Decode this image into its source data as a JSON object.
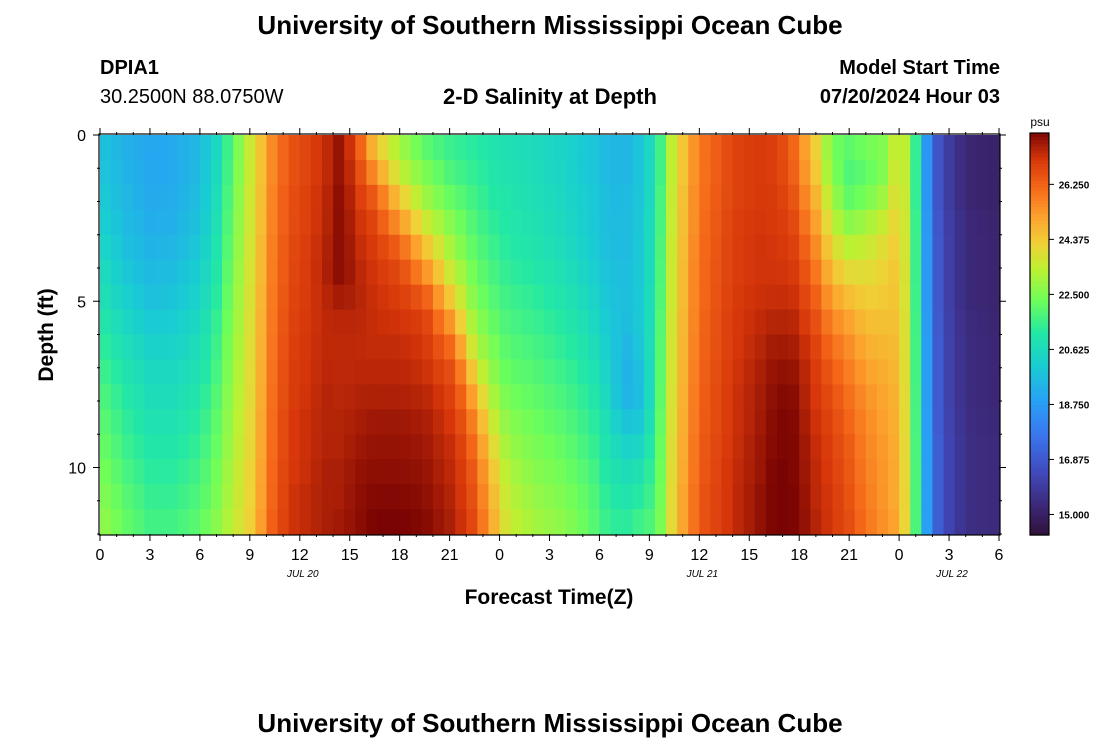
{
  "header": {
    "title": "University of Southern Mississippi Ocean Cube",
    "station_id": "DPIA1",
    "coordinates": "30.2500N  88.0750W",
    "plot_title": "2-D Salinity at Depth",
    "model_start_label": "Model Start Time",
    "model_start_value": "07/20/2024 Hour 03"
  },
  "footer": {
    "title": "University of Southern Mississippi Ocean Cube"
  },
  "chart_data": {
    "type": "heatmap",
    "title": "2-D Salinity at Depth",
    "xlabel": "Forecast Time(Z)",
    "ylabel": "Depth (ft)",
    "x_ticks": [
      "0",
      "3",
      "6",
      "9",
      "12",
      "15",
      "18",
      "21",
      "0",
      "3",
      "6",
      "9",
      "12",
      "15",
      "18",
      "21",
      "0",
      "3",
      "6"
    ],
    "x_range_hours": [
      0,
      54
    ],
    "date_labels": [
      {
        "label": "JUL 20",
        "hour": 12
      },
      {
        "label": "JUL 21",
        "hour": 36
      },
      {
        "label": "JUL 22",
        "hour": 51
      }
    ],
    "y_ticks": [
      0,
      5,
      10
    ],
    "y_range_ft": [
      0,
      12
    ],
    "colorbar": {
      "unit": "psu",
      "min": 14.3,
      "max": 28.0,
      "tick_labels": [
        "26.250",
        "24.375",
        "22.500",
        "20.625",
        "18.750",
        "16.875",
        "15.000"
      ],
      "tick_values": [
        26.25,
        24.375,
        22.5,
        20.625,
        18.75,
        16.875,
        15.0
      ]
    },
    "depth_levels_ft": [
      0.4,
      1.2,
      2.0,
      2.8,
      3.6,
      4.4,
      5.2,
      6.0,
      6.8,
      7.6,
      8.4,
      9.2,
      10.0,
      10.8,
      11.6
    ],
    "profile_hours": [
      0,
      1.5,
      3,
      4.5,
      6,
      7,
      8,
      9,
      9.7,
      10.5,
      11.5,
      12.5,
      13.5,
      14.5,
      15.5,
      16.5,
      18,
      19.5,
      21,
      22,
      22.5,
      23.5,
      24.5,
      26,
      28,
      29.5,
      30.5,
      31.5,
      32.5,
      33.5,
      34,
      35,
      36,
      38,
      39.5,
      40.5,
      41.5,
      42,
      43,
      44,
      45,
      46,
      47,
      48,
      48.7,
      49.2,
      49.8,
      50.5,
      52,
      54
    ],
    "salinity_psu": [
      [
        19.8,
        19.9,
        20.1,
        20.3,
        20.5,
        20.8,
        21.0,
        21.3,
        21.5,
        21.8,
        22.0,
        22.2,
        22.4,
        22.6,
        22.8
      ],
      [
        19.3,
        19.4,
        19.5,
        19.6,
        19.8,
        20.0,
        20.3,
        20.6,
        20.9,
        21.1,
        21.3,
        21.5,
        21.7,
        21.9,
        22.1
      ],
      [
        19.0,
        19.0,
        19.1,
        19.2,
        19.4,
        19.6,
        19.8,
        20.1,
        20.4,
        20.6,
        20.8,
        21.0,
        21.2,
        21.4,
        21.6
      ],
      [
        19.1,
        19.1,
        19.2,
        19.3,
        19.5,
        19.7,
        19.9,
        20.2,
        20.4,
        20.6,
        20.8,
        21.0,
        21.2,
        21.4,
        21.6
      ],
      [
        19.5,
        19.6,
        19.7,
        19.8,
        20.0,
        20.2,
        20.4,
        20.6,
        20.8,
        21.0,
        21.2,
        21.4,
        21.6,
        21.8,
        22.0
      ],
      [
        20.5,
        20.6,
        20.7,
        20.8,
        21.0,
        21.1,
        21.3,
        21.5,
        21.6,
        21.8,
        22.0,
        22.1,
        22.3,
        22.4,
        22.6
      ],
      [
        22.0,
        22.1,
        22.2,
        22.3,
        22.4,
        22.5,
        22.6,
        22.7,
        22.8,
        22.9,
        23.0,
        23.1,
        23.2,
        23.3,
        23.4
      ],
      [
        23.5,
        23.5,
        23.6,
        23.6,
        23.7,
        23.7,
        23.8,
        23.8,
        23.9,
        23.9,
        24.0,
        24.0,
        24.1,
        24.1,
        24.2
      ],
      [
        24.5,
        24.5,
        24.6,
        24.6,
        24.7,
        24.7,
        24.8,
        24.8,
        24.9,
        24.9,
        25.0,
        25.0,
        25.1,
        25.1,
        25.2
      ],
      [
        25.8,
        25.8,
        25.9,
        25.9,
        26.0,
        26.0,
        26.1,
        26.1,
        26.2,
        26.2,
        26.3,
        26.3,
        26.4,
        26.4,
        26.5
      ],
      [
        26.5,
        26.5,
        26.6,
        26.6,
        26.7,
        26.7,
        26.8,
        26.8,
        26.9,
        26.9,
        27.0,
        27.0,
        27.0,
        27.1,
        27.1
      ],
      [
        26.8,
        26.8,
        26.9,
        26.9,
        27.0,
        27.0,
        27.0,
        27.1,
        27.1,
        27.1,
        27.2,
        27.2,
        27.2,
        27.3,
        27.3
      ],
      [
        27.2,
        27.2,
        27.3,
        27.3,
        27.4,
        27.4,
        27.3,
        27.3,
        27.3,
        27.4,
        27.4,
        27.4,
        27.5,
        27.5,
        27.5
      ],
      [
        27.8,
        27.8,
        27.9,
        27.9,
        27.9,
        27.9,
        27.4,
        27.3,
        27.3,
        27.3,
        27.4,
        27.4,
        27.5,
        27.5,
        27.6
      ],
      [
        26.5,
        26.8,
        27.0,
        27.2,
        27.3,
        27.4,
        27.4,
        27.3,
        27.3,
        27.4,
        27.5,
        27.6,
        27.7,
        27.8,
        27.8
      ],
      [
        24.5,
        25.5,
        26.5,
        26.8,
        27.0,
        27.1,
        27.2,
        27.2,
        27.3,
        27.4,
        27.6,
        27.7,
        27.8,
        27.9,
        28.0
      ],
      [
        23.0,
        23.5,
        24.5,
        25.5,
        26.5,
        26.8,
        27.0,
        27.2,
        27.3,
        27.4,
        27.6,
        27.7,
        27.8,
        27.9,
        28.0
      ],
      [
        22.0,
        22.5,
        23.0,
        23.8,
        24.8,
        25.8,
        26.8,
        27.0,
        27.1,
        27.3,
        27.5,
        27.6,
        27.7,
        27.8,
        27.9
      ],
      [
        21.5,
        21.8,
        22.2,
        22.7,
        23.2,
        23.8,
        24.8,
        25.8,
        26.5,
        26.8,
        27.0,
        27.2,
        27.3,
        27.4,
        27.5
      ],
      [
        21.3,
        21.5,
        21.8,
        22.1,
        22.4,
        22.8,
        23.3,
        24.0,
        25.0,
        25.8,
        26.3,
        26.6,
        26.8,
        26.9,
        27.0
      ],
      [
        21.2,
        21.4,
        21.6,
        21.8,
        22.0,
        22.3,
        22.6,
        23.0,
        23.6,
        24.5,
        25.3,
        25.8,
        26.2,
        26.4,
        26.6
      ],
      [
        21.0,
        21.1,
        21.2,
        21.4,
        21.6,
        21.8,
        22.0,
        22.3,
        22.6,
        23.0,
        23.5,
        24.0,
        24.5,
        24.8,
        25.0
      ],
      [
        20.8,
        20.9,
        21.0,
        21.1,
        21.2,
        21.4,
        21.6,
        21.8,
        22.0,
        22.2,
        22.5,
        22.8,
        23.1,
        23.3,
        23.5
      ],
      [
        20.6,
        20.7,
        20.8,
        20.9,
        21.0,
        21.2,
        21.4,
        21.6,
        21.8,
        22.0,
        22.2,
        22.4,
        22.6,
        22.8,
        23.0
      ],
      [
        20.3,
        20.3,
        20.4,
        20.5,
        20.6,
        20.8,
        21.0,
        21.2,
        21.4,
        21.6,
        21.8,
        22.0,
        22.2,
        22.4,
        22.6
      ],
      [
        19.9,
        19.9,
        20.0,
        20.0,
        20.1,
        20.3,
        20.5,
        20.7,
        20.9,
        21.1,
        21.3,
        21.5,
        21.7,
        21.9,
        22.0
      ],
      [
        19.5,
        19.5,
        19.6,
        19.6,
        19.7,
        19.8,
        19.9,
        20.0,
        20.2,
        20.4,
        20.6,
        20.8,
        21.0,
        21.2,
        21.4
      ],
      [
        19.4,
        19.4,
        19.5,
        19.5,
        19.5,
        19.6,
        19.6,
        19.5,
        19.3,
        19.2,
        19.6,
        20.2,
        20.6,
        20.9,
        21.2
      ],
      [
        19.9,
        19.9,
        19.9,
        20.0,
        20.0,
        20.0,
        20.0,
        20.0,
        19.8,
        19.6,
        19.8,
        20.3,
        20.8,
        21.2,
        21.6
      ],
      [
        21.0,
        21.0,
        21.1,
        21.1,
        21.2,
        21.2,
        21.3,
        21.3,
        21.4,
        21.4,
        21.5,
        21.6,
        21.7,
        21.8,
        21.9
      ],
      [
        22.8,
        22.8,
        22.9,
        22.9,
        23.0,
        23.0,
        23.0,
        23.1,
        23.1,
        23.2,
        23.2,
        23.3,
        23.3,
        23.4,
        23.4
      ],
      [
        24.4,
        24.4,
        24.5,
        24.5,
        24.6,
        24.6,
        24.6,
        24.7,
        24.7,
        24.8,
        24.8,
        24.9,
        24.9,
        25.0,
        25.0
      ],
      [
        25.8,
        25.8,
        25.9,
        25.9,
        26.0,
        26.0,
        26.0,
        26.1,
        26.1,
        26.2,
        26.2,
        26.3,
        26.3,
        26.4,
        26.4
      ],
      [
        26.8,
        26.8,
        26.8,
        26.9,
        26.9,
        26.9,
        27.0,
        27.0,
        27.0,
        27.1,
        27.1,
        27.1,
        27.2,
        27.2,
        27.2
      ],
      [
        27.0,
        27.0,
        27.0,
        27.1,
        27.1,
        27.1,
        27.2,
        27.3,
        27.4,
        27.5,
        27.5,
        27.6,
        27.6,
        27.7,
        27.7
      ],
      [
        26.9,
        26.9,
        27.0,
        27.0,
        27.1,
        27.1,
        27.3,
        27.5,
        27.7,
        27.8,
        27.9,
        27.9,
        28.0,
        28.0,
        28.0
      ],
      [
        26.4,
        26.5,
        26.7,
        26.9,
        27.0,
        27.1,
        27.3,
        27.5,
        27.7,
        27.9,
        28.0,
        28.0,
        28.0,
        28.0,
        28.0
      ],
      [
        25.6,
        25.8,
        26.1,
        26.4,
        26.7,
        26.9,
        27.1,
        27.3,
        27.5,
        27.6,
        27.7,
        27.8,
        27.8,
        27.9,
        27.9
      ],
      [
        24.2,
        24.4,
        24.8,
        25.2,
        25.6,
        26.0,
        26.4,
        26.7,
        26.9,
        27.0,
        27.1,
        27.2,
        27.3,
        27.3,
        27.4
      ],
      [
        22.3,
        22.5,
        23.0,
        23.5,
        24.1,
        24.7,
        25.3,
        25.8,
        26.2,
        26.5,
        26.7,
        26.8,
        26.9,
        27.0,
        27.0
      ],
      [
        22.0,
        21.8,
        22.1,
        22.8,
        23.5,
        24.2,
        24.8,
        25.3,
        25.6,
        25.9,
        26.1,
        26.3,
        26.4,
        26.5,
        26.6
      ],
      [
        22.3,
        22.0,
        22.4,
        23.1,
        23.6,
        24.0,
        24.4,
        24.7,
        25.0,
        25.3,
        25.5,
        25.6,
        25.7,
        25.8,
        25.9
      ],
      [
        22.5,
        22.5,
        23.0,
        23.6,
        24.0,
        24.2,
        24.4,
        24.6,
        24.8,
        25.0,
        25.1,
        25.2,
        25.3,
        25.3,
        25.4
      ],
      [
        23.8,
        24.0,
        24.2,
        24.3,
        24.4,
        24.5,
        24.5,
        24.6,
        24.6,
        24.7,
        24.7,
        24.8,
        24.8,
        24.8,
        24.9
      ],
      [
        22.8,
        22.8,
        22.8,
        22.9,
        22.9,
        22.9,
        23.0,
        23.0,
        23.0,
        23.1,
        23.1,
        23.1,
        23.2,
        23.2,
        23.2
      ],
      [
        20.5,
        20.5,
        20.5,
        20.6,
        20.6,
        20.6,
        20.6,
        20.7,
        20.7,
        20.7,
        20.7,
        20.8,
        20.8,
        20.8,
        20.8
      ],
      [
        18.0,
        18.0,
        18.0,
        18.1,
        18.1,
        18.1,
        18.1,
        18.2,
        18.2,
        18.2,
        18.2,
        18.3,
        18.3,
        18.3,
        18.3
      ],
      [
        16.3,
        16.3,
        16.3,
        16.4,
        16.4,
        16.4,
        16.4,
        16.5,
        16.5,
        16.5,
        16.5,
        16.6,
        16.6,
        16.6,
        16.6
      ],
      [
        15.2,
        15.2,
        15.2,
        15.3,
        15.3,
        15.3,
        15.3,
        15.4,
        15.4,
        15.4,
        15.4,
        15.5,
        15.5,
        15.5,
        15.5
      ],
      [
        15.0,
        15.0,
        15.0,
        15.1,
        15.1,
        15.1,
        15.1,
        15.2,
        15.2,
        15.2,
        15.2,
        15.3,
        15.3,
        15.3,
        15.3
      ]
    ]
  }
}
